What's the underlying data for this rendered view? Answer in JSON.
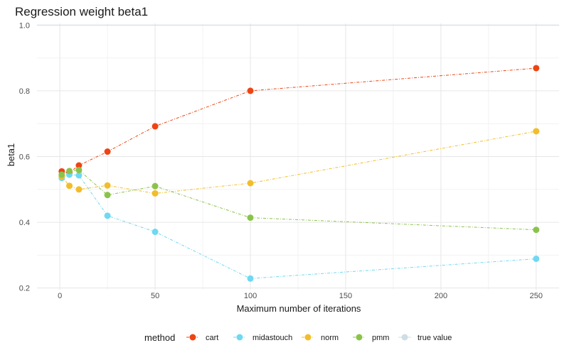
{
  "chart_data": {
    "type": "line",
    "title": "Regression weight beta1",
    "xlabel": "Maximum number of iterations",
    "ylabel": "beta1",
    "xlim": [
      -12,
      262
    ],
    "ylim": [
      0.195,
      1.005
    ],
    "x_ticks": [
      0,
      50,
      100,
      150,
      200,
      250
    ],
    "x_tick_labels": [
      "0",
      "50",
      "100",
      "150",
      "200",
      "250"
    ],
    "y_ticks": [
      0.2,
      0.4,
      0.6,
      0.8,
      1.0
    ],
    "y_tick_labels": [
      "0.2",
      "0.4",
      "0.6",
      "0.8",
      "1.0"
    ],
    "grid": true,
    "legend": {
      "title": "method",
      "position": "bottom"
    },
    "x": [
      1,
      5,
      10,
      25,
      50,
      100,
      250
    ],
    "series": [
      {
        "name": "cart",
        "color": "#ee4413",
        "values": [
          0.555,
          0.551,
          0.573,
          0.615,
          0.692,
          0.8,
          0.869
        ]
      },
      {
        "name": "midastouch",
        "color": "#6fd8f2",
        "values": [
          0.535,
          0.545,
          0.543,
          0.42,
          0.371,
          0.229,
          0.289
        ]
      },
      {
        "name": "norm",
        "color": "#f2bd2b",
        "values": [
          0.54,
          0.511,
          0.5,
          0.512,
          0.488,
          0.519,
          0.677
        ]
      },
      {
        "name": "pmm",
        "color": "#8bc34a",
        "values": [
          0.545,
          0.556,
          0.559,
          0.483,
          0.51,
          0.414,
          0.377
        ]
      },
      {
        "name": "true value",
        "color": "#cfdde4",
        "values": [
          1.0,
          1.0,
          1.0,
          1.0,
          1.0,
          1.0,
          1.0
        ]
      }
    ]
  }
}
